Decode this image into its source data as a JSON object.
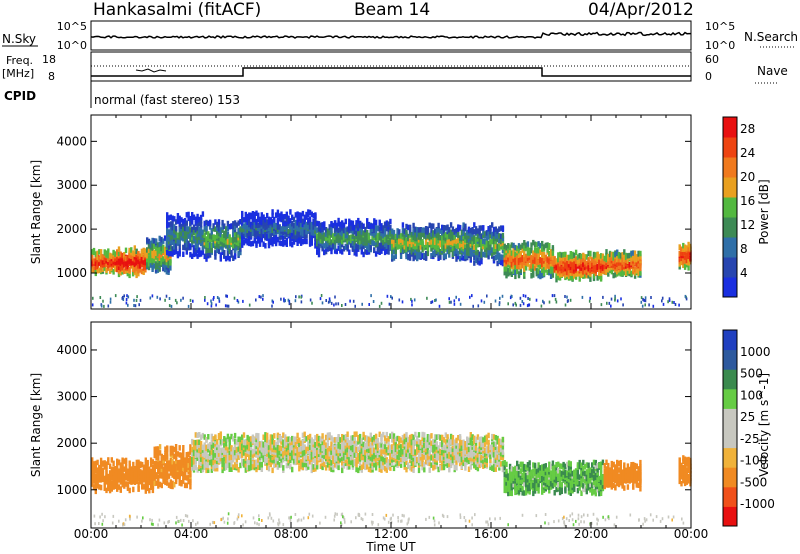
{
  "header": {
    "station": "Hankasalmi (fitACF)",
    "beam": "Beam 14",
    "date": "04/Apr/2012"
  },
  "top_panels": {
    "nsky_label": "N.Sky",
    "nsky_tick_top": "10^5",
    "nsky_tick_bottom": "10^0",
    "nsearch_label": "N.Search",
    "nsearch_tick_top": "10^5",
    "nsearch_tick_bottom": "10^0",
    "freq_label_1": "Freq.",
    "freq_label_2": "[MHz]",
    "freq_tick_top": "18",
    "freq_tick_bottom": "8",
    "nave_label": "Nave",
    "nave_tick_top": "60",
    "nave_tick_bottom": "0",
    "cpid_label": "CPID",
    "cpid_text": "normal (fast stereo) 153"
  },
  "colors": {
    "power_scale": [
      "#1a2fe0",
      "#2745b0",
      "#2f6fa8",
      "#3d8a55",
      "#53b840",
      "#e9a020",
      "#f07a1e",
      "#ee4411",
      "#e81010"
    ],
    "velocity_scale": [
      "#e81010",
      "#f0501a",
      "#f08a22",
      "#f0b23a",
      "#c8c8c0",
      "#c8c8c0",
      "#66cc44",
      "#3a8a4e",
      "#2e5a9e",
      "#2040c0"
    ]
  },
  "chart_data": [
    {
      "type": "heatmap",
      "panel": "power",
      "ylabel": "Slant Range [km]",
      "xlabel": "Time UT",
      "x_ticks": [
        "00:00",
        "04:00",
        "08:00",
        "12:00",
        "16:00",
        "20:00",
        "00:00"
      ],
      "y_ticks": [
        "1000",
        "2000",
        "3000",
        "4000"
      ],
      "ylim": [
        180,
        4600
      ],
      "xlim_hours": [
        0,
        24
      ],
      "colorbar_label": "Power [dB]",
      "colorbar_ticks": [
        "4",
        "8",
        "12",
        "16",
        "20",
        "24",
        "28"
      ],
      "colorbar_range": [
        0,
        30
      ],
      "echo_bands": [
        {
          "t0": 0.0,
          "t1": 1.0,
          "center_km": 1250,
          "width_km": 450,
          "value": 28
        },
        {
          "t0": 1.0,
          "t1": 2.2,
          "center_km": 1250,
          "width_km": 550,
          "value": 30
        },
        {
          "t0": 2.2,
          "t1": 3.2,
          "center_km": 1400,
          "width_km": 700,
          "value": 20
        },
        {
          "t0": 3.0,
          "t1": 4.5,
          "center_km": 1850,
          "width_km": 900,
          "value": 12
        },
        {
          "t0": 4.5,
          "t1": 6.0,
          "center_km": 1750,
          "width_km": 800,
          "value": 16
        },
        {
          "t0": 6.0,
          "t1": 9.0,
          "center_km": 2000,
          "width_km": 700,
          "value": 10
        },
        {
          "t0": 9.0,
          "t1": 12.0,
          "center_km": 1800,
          "width_km": 700,
          "value": 14
        },
        {
          "t0": 12.0,
          "t1": 15.0,
          "center_km": 1700,
          "width_km": 700,
          "value": 18
        },
        {
          "t0": 15.0,
          "t1": 16.5,
          "center_km": 1650,
          "width_km": 800,
          "value": 16
        },
        {
          "t0": 16.5,
          "t1": 18.5,
          "center_km": 1300,
          "width_km": 700,
          "value": 24
        },
        {
          "t0": 18.5,
          "t1": 20.5,
          "center_km": 1150,
          "width_km": 550,
          "value": 28
        },
        {
          "t0": 20.5,
          "t1": 22.0,
          "center_km": 1200,
          "width_km": 500,
          "value": 26
        },
        {
          "t0": 23.5,
          "t1": 24.0,
          "center_km": 1400,
          "width_km": 500,
          "value": 28
        }
      ]
    },
    {
      "type": "heatmap",
      "panel": "velocity",
      "ylabel": "Slant Range [km]",
      "xlabel": "Time UT",
      "x_ticks": [
        "00:00",
        "04:00",
        "08:00",
        "12:00",
        "16:00",
        "20:00",
        "00:00"
      ],
      "y_ticks": [
        "1000",
        "2000",
        "3000",
        "4000"
      ],
      "ylim": [
        180,
        4600
      ],
      "xlim_hours": [
        0,
        24
      ],
      "colorbar_label": "Velocity [m s^-1]",
      "colorbar_ticks": [
        "1000",
        "500",
        "100",
        "25",
        "-25",
        "-100",
        "-500",
        "-1000"
      ],
      "echo_bands": [
        {
          "t0": 0.0,
          "t1": 2.5,
          "center_km": 1300,
          "width_km": 600,
          "value": -300
        },
        {
          "t0": 2.5,
          "t1": 4.0,
          "center_km": 1500,
          "width_km": 800,
          "value": -150
        },
        {
          "t0": 4.0,
          "t1": 16.5,
          "center_km": 1800,
          "width_km": 700,
          "value": 0
        },
        {
          "t0": 16.5,
          "t1": 20.5,
          "center_km": 1250,
          "width_km": 600,
          "value": 80
        },
        {
          "t0": 20.5,
          "t1": 22.0,
          "center_km": 1300,
          "width_km": 500,
          "value": -200
        },
        {
          "t0": 23.5,
          "t1": 24.0,
          "center_km": 1400,
          "width_km": 500,
          "value": -400
        }
      ]
    }
  ]
}
